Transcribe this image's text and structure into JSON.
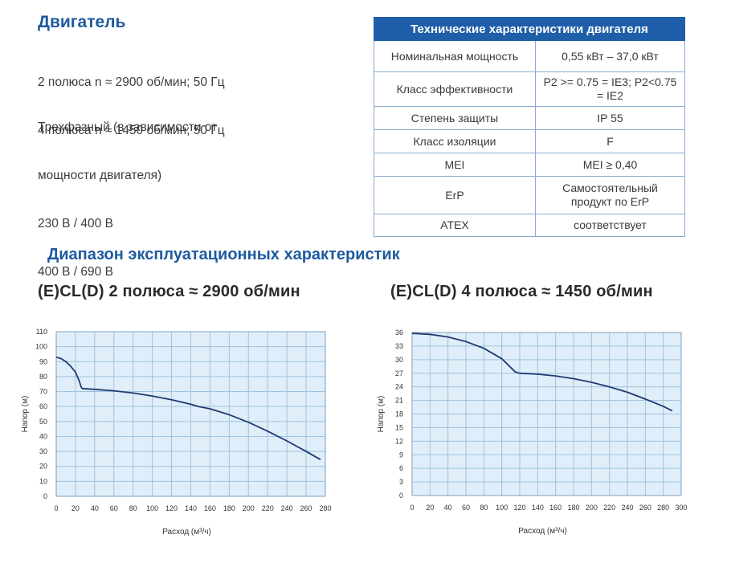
{
  "motor": {
    "title": "Двигатель",
    "poles_lines": [
      "2 полюса n ≈ 2900 об/мин; 50 Гц",
      "4 полюса n ≈ 1450 об/мин; 50 Гц"
    ],
    "phase_lines": [
      "Трехфазный (в зависимости от",
      "мощности двигателя)",
      "230 В / 400 В",
      "400 В / 690 В"
    ]
  },
  "table": {
    "title": "Технические характеристики двигателя",
    "rows": [
      {
        "label": "Номинальная мощность",
        "value": "0,55 кВт – 37,0 кВт"
      },
      {
        "label": "Класс эффективности",
        "value": "P2 >= 0.75 = IE3; P2<0.75 = IE2"
      },
      {
        "label": "Степень защиты",
        "value": "IP 55"
      },
      {
        "label": "Класс изоляции",
        "value": "F"
      },
      {
        "label": "MEI",
        "value": "MEI ≥ 0,40"
      },
      {
        "label": "ErP",
        "value": "Самостоятельный продукт по ErP"
      },
      {
        "label": "ATEX",
        "value": "соответствует"
      }
    ]
  },
  "range_title": "Диапазон эксплуатационных характеристик",
  "chart_data": [
    {
      "type": "line",
      "title": "(E)CL(D) 2 полюса  ≈ 2900 об/мин",
      "xlabel": "Расход (м³/ч)",
      "ylabel": "Напор (м)",
      "xlim": [
        0,
        280
      ],
      "ylim": [
        0,
        110
      ],
      "xticks": [
        0,
        20,
        40,
        60,
        80,
        100,
        120,
        140,
        160,
        180,
        200,
        220,
        240,
        260,
        280
      ],
      "yticks": [
        0,
        10,
        20,
        30,
        40,
        50,
        60,
        70,
        80,
        90,
        100,
        110
      ],
      "grid": true,
      "colors": {
        "line": "#1f3a70",
        "plot_bg": "#dfeef8",
        "grid": "#9fc3e0"
      },
      "series": [
        {
          "x": [
            0,
            5,
            10,
            15,
            20,
            24,
            26,
            27,
            40,
            60,
            80,
            100,
            120,
            140,
            148,
            160,
            180,
            200,
            220,
            240,
            260,
            275
          ],
          "y": [
            93,
            92,
            90,
            87,
            83,
            77,
            73,
            72,
            71.5,
            70.5,
            69,
            67,
            64.5,
            61.5,
            60,
            58.5,
            54.5,
            49.5,
            43.5,
            37,
            30,
            24.5
          ]
        }
      ]
    },
    {
      "type": "line",
      "title": "(E)CL(D) 4 полюса  ≈ 1450 об/мин",
      "xlabel": "Расход (м³/ч)",
      "ylabel": "Напор (м)",
      "xlim": [
        0,
        300
      ],
      "ylim": [
        0,
        36
      ],
      "xticks": [
        0,
        20,
        40,
        60,
        80,
        100,
        120,
        140,
        160,
        180,
        200,
        220,
        240,
        260,
        280,
        300
      ],
      "yticks": [
        0,
        3,
        6,
        9,
        12,
        15,
        18,
        21,
        24,
        27,
        30,
        33,
        36
      ],
      "grid": true,
      "colors": {
        "line": "#1f3a70",
        "plot_bg": "#dfeef8",
        "grid": "#9fc3e0"
      },
      "series": [
        {
          "x": [
            0,
            20,
            40,
            60,
            80,
            100,
            115,
            120,
            140,
            160,
            180,
            200,
            220,
            240,
            260,
            280,
            290
          ],
          "y": [
            35.8,
            35.6,
            35,
            34,
            32.5,
            30.2,
            27.3,
            27,
            26.8,
            26.4,
            25.8,
            25,
            24,
            22.8,
            21.3,
            19.7,
            18.7
          ]
        }
      ]
    }
  ]
}
